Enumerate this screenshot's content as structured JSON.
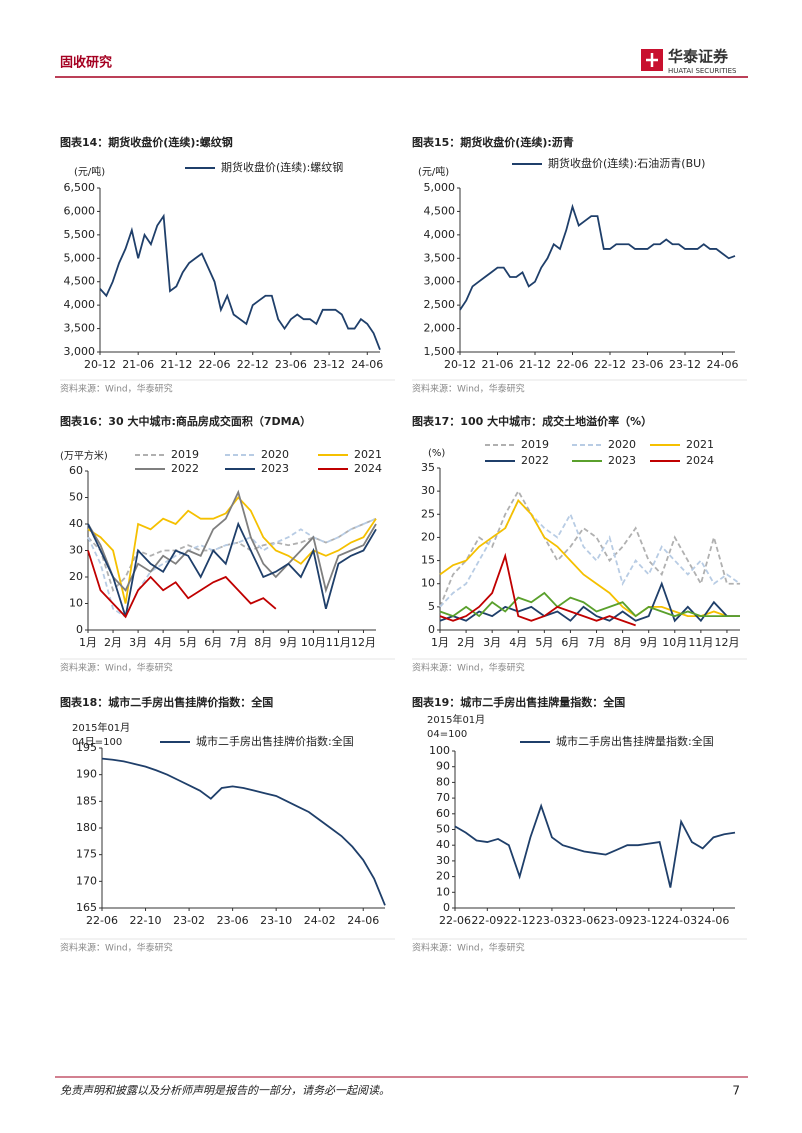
{
  "header": {
    "section": "固收研究",
    "logo_cn": "华泰证券",
    "logo_en": "HUATAI SECURITIES"
  },
  "footer": {
    "disclaimer": "免责声明和披露以及分析师声明是报告的一部分，请务必一起阅读。",
    "page": 7
  },
  "chart_data": [
    {
      "type": "line",
      "title": "图表14：期货收盘价(连续):螺纹钢",
      "y_label": "(元/吨)",
      "source": "资料来源：Wind，华泰研究",
      "categories": [
        "20-12",
        null,
        null,
        null,
        null,
        null,
        "21-06",
        null,
        null,
        null,
        null,
        null,
        "21-12",
        null,
        null,
        null,
        null,
        null,
        "22-06",
        null,
        null,
        null,
        null,
        null,
        "22-12",
        null,
        null,
        null,
        null,
        null,
        "23-06",
        null,
        null,
        null,
        null,
        null,
        "23-12",
        null,
        null,
        null,
        null,
        null,
        "24-06",
        null,
        null
      ],
      "series": [
        {
          "name": "期货收盘价(连续):螺纹钢",
          "color": "#1f3f6a",
          "values": [
            4350,
            4200,
            4500,
            4900,
            5200,
            5600,
            5000,
            5500,
            5300,
            5700,
            5900,
            4300,
            4400,
            4700,
            4900,
            5000,
            5100,
            4800,
            4500,
            3900,
            4200,
            3800,
            3700,
            3600,
            4000,
            4100,
            4200,
            4200,
            3700,
            3500,
            3700,
            3800,
            3700,
            3700,
            3600,
            3900,
            3900,
            3900,
            3800,
            3500,
            3500,
            3700,
            3600,
            3400,
            3050
          ]
        }
      ],
      "ylim": [
        3000,
        6500
      ],
      "yticks": [
        {
          "value": 3000,
          "label": "3,000"
        },
        {
          "value": 3500,
          "label": "3,500"
        },
        {
          "value": 4000,
          "label": "4,000"
        },
        {
          "value": 4500,
          "label": "4,500"
        },
        {
          "value": 5000,
          "label": "5,000"
        },
        {
          "value": 5500,
          "label": "5,500"
        },
        {
          "value": 6000,
          "label": "6,000"
        },
        {
          "value": 6500,
          "label": "6,500"
        }
      ]
    },
    {
      "type": "line",
      "title": "图表15：期货收盘价(连续):沥青",
      "y_label": "(元/吨)",
      "source": "资料来源：Wind，华泰研究",
      "categories": [
        "20-12",
        null,
        null,
        null,
        null,
        null,
        "21-06",
        null,
        null,
        null,
        null,
        null,
        "21-12",
        null,
        null,
        null,
        null,
        null,
        "22-06",
        null,
        null,
        null,
        null,
        null,
        "22-12",
        null,
        null,
        null,
        null,
        null,
        "23-06",
        null,
        null,
        null,
        null,
        null,
        "23-12",
        null,
        null,
        null,
        null,
        null,
        "24-06",
        null,
        null
      ],
      "series": [
        {
          "name": "期货收盘价(连续):石油沥青(BU)",
          "color": "#1f3f6a",
          "values": [
            2400,
            2600,
            2900,
            3000,
            3100,
            3200,
            3300,
            3300,
            3100,
            3100,
            3200,
            2900,
            3000,
            3300,
            3500,
            3800,
            3700,
            4100,
            4600,
            4200,
            4300,
            4400,
            4400,
            3700,
            3700,
            3800,
            3800,
            3800,
            3700,
            3700,
            3700,
            3800,
            3800,
            3900,
            3800,
            3800,
            3700,
            3700,
            3700,
            3800,
            3700,
            3700,
            3600,
            3500,
            3550
          ]
        }
      ],
      "ylim": [
        1500,
        5000
      ],
      "yticks": [
        {
          "value": 1500,
          "label": "1,500"
        },
        {
          "value": 2000,
          "label": "2,000"
        },
        {
          "value": 2500,
          "label": "2,500"
        },
        {
          "value": 3000,
          "label": "3,000"
        },
        {
          "value": 3500,
          "label": "3,500"
        },
        {
          "value": 4000,
          "label": "4,000"
        },
        {
          "value": 4500,
          "label": "4,500"
        },
        {
          "value": 5000,
          "label": "5,000"
        }
      ]
    },
    {
      "type": "line",
      "title": "图表16：30 大中城市:商品房成交面积（7DMA）",
      "y_label": "(万平方米)",
      "source": "资料来源：Wind，华泰研究",
      "categories": [
        "1月",
        null,
        "2月",
        null,
        "3月",
        null,
        "4月",
        null,
        "5月",
        null,
        "6月",
        null,
        "7月",
        null,
        "8月",
        null,
        "9月",
        null,
        "10月",
        null,
        "11月",
        null,
        "12月",
        null
      ],
      "series": [
        {
          "name": "2019",
          "color": "#b0b0b0",
          "dashed": true,
          "values": [
            35,
            30,
            15,
            20,
            30,
            28,
            30,
            30,
            32,
            30,
            30,
            32,
            33,
            30,
            32,
            33,
            32,
            33,
            35,
            33,
            35,
            38,
            40,
            42
          ]
        },
        {
          "name": "2020",
          "color": "#b8cce4",
          "dashed": true,
          "values": [
            35,
            25,
            8,
            5,
            15,
            22,
            25,
            28,
            30,
            32,
            30,
            32,
            33,
            35,
            30,
            33,
            35,
            38,
            35,
            33,
            35,
            38,
            40,
            42
          ]
        },
        {
          "name": "2021",
          "color": "#f5c000",
          "values": [
            38,
            35,
            30,
            10,
            40,
            38,
            42,
            40,
            45,
            42,
            42,
            44,
            50,
            45,
            35,
            30,
            28,
            25,
            30,
            28,
            30,
            33,
            35,
            42
          ]
        },
        {
          "name": "2022",
          "color": "#7f7f7f",
          "values": [
            40,
            32,
            20,
            15,
            25,
            22,
            28,
            25,
            30,
            28,
            38,
            42,
            52,
            35,
            25,
            20,
            25,
            30,
            35,
            15,
            28,
            30,
            32,
            40
          ]
        },
        {
          "name": "2023",
          "color": "#1f3f6a",
          "values": [
            40,
            30,
            20,
            5,
            30,
            25,
            22,
            30,
            28,
            20,
            30,
            25,
            40,
            30,
            20,
            22,
            25,
            20,
            30,
            8,
            25,
            28,
            30,
            38
          ]
        },
        {
          "name": "2024",
          "color": "#c00000",
          "values": [
            30,
            15,
            10,
            5,
            15,
            20,
            15,
            18,
            12,
            15,
            18,
            20,
            15,
            10,
            12,
            8,
            null,
            null,
            null,
            null,
            null,
            null,
            null,
            null
          ]
        }
      ],
      "ylim": [
        0,
        60
      ],
      "yticks": [
        0,
        10,
        20,
        30,
        40,
        50,
        60
      ]
    },
    {
      "type": "line",
      "title": "图表17：100 大中城市：成交土地溢价率（%）",
      "y_label": "(%)",
      "source": "资料来源：Wind，华泰研究",
      "categories": [
        "1月",
        null,
        "2月",
        null,
        "3月",
        null,
        "4月",
        null,
        "5月",
        null,
        "6月",
        null,
        "7月",
        null,
        "8月",
        null,
        "9月",
        null,
        "10月",
        null,
        "11月",
        null,
        "12月",
        null
      ],
      "series": [
        {
          "name": "2019",
          "color": "#b0b0b0",
          "dashed": true,
          "values": [
            5,
            12,
            15,
            20,
            18,
            25,
            30,
            25,
            20,
            15,
            18,
            22,
            20,
            15,
            18,
            22,
            15,
            12,
            20,
            15,
            10,
            20,
            10,
            10
          ]
        },
        {
          "name": "2020",
          "color": "#b8cce4",
          "dashed": true,
          "values": [
            5,
            8,
            10,
            15,
            20,
            22,
            28,
            25,
            22,
            20,
            25,
            18,
            15,
            20,
            10,
            15,
            12,
            18,
            15,
            12,
            15,
            10,
            12,
            10
          ]
        },
        {
          "name": "2021",
          "color": "#f5c000",
          "values": [
            12,
            14,
            15,
            18,
            20,
            22,
            28,
            25,
            20,
            18,
            15,
            12,
            10,
            8,
            5,
            3,
            5,
            5,
            4,
            3,
            3,
            4,
            3,
            3
          ]
        },
        {
          "name": "2022",
          "color": "#1f3f6a",
          "values": [
            2,
            3,
            2,
            4,
            3,
            5,
            4,
            5,
            3,
            4,
            2,
            5,
            3,
            2,
            4,
            2,
            3,
            10,
            2,
            5,
            2,
            6,
            3,
            3
          ]
        },
        {
          "name": "2023",
          "color": "#5aa02c",
          "values": [
            4,
            3,
            5,
            3,
            6,
            4,
            7,
            6,
            8,
            5,
            7,
            6,
            4,
            5,
            6,
            3,
            5,
            4,
            3,
            4,
            3,
            3,
            3,
            3
          ]
        },
        {
          "name": "2024",
          "color": "#c00000",
          "values": [
            3,
            2,
            3,
            5,
            8,
            16,
            3,
            2,
            3,
            5,
            4,
            3,
            2,
            3,
            2,
            1,
            null,
            null,
            null,
            null,
            null,
            null,
            null,
            null
          ]
        }
      ],
      "ylim": [
        0,
        35
      ],
      "yticks": [
        0,
        5,
        10,
        15,
        20,
        25,
        30,
        35
      ]
    },
    {
      "type": "line",
      "title": "图表18：城市二手房出售挂牌价指数：全国",
      "y_label": [
        "2015年01月",
        "04日=100"
      ],
      "source": "资料来源：Wind，华泰研究",
      "categories": [
        "22-06",
        null,
        null,
        null,
        "22-10",
        null,
        null,
        null,
        "23-02",
        null,
        null,
        null,
        "23-06",
        null,
        null,
        null,
        "23-10",
        null,
        null,
        null,
        "24-02",
        null,
        null,
        null,
        "24-06",
        null,
        null
      ],
      "series": [
        {
          "name": "城市二手房出售挂牌价指数:全国",
          "color": "#1f3f6a",
          "values": [
            193,
            192.8,
            192.5,
            192,
            191.5,
            190.8,
            190,
            189,
            188,
            187,
            185.5,
            187.5,
            187.8,
            187.5,
            187,
            186.5,
            186,
            185,
            184,
            183,
            181.5,
            180,
            178.5,
            176.5,
            174,
            170.5,
            165.5
          ]
        }
      ],
      "ylim": [
        165,
        195
      ],
      "yticks": [
        165,
        170,
        175,
        180,
        185,
        190,
        195
      ]
    },
    {
      "type": "line",
      "title": "图表19：城市二手房出售挂牌量指数：全国",
      "y_label": [
        "2015年01月",
        "04=100"
      ],
      "source": "资料来源：Wind，华泰研究",
      "categories": [
        "22-06",
        null,
        null,
        "22-09",
        null,
        null,
        "22-12",
        null,
        null,
        "23-03",
        null,
        null,
        "23-06",
        null,
        null,
        "23-09",
        null,
        null,
        "23-12",
        null,
        null,
        "24-03",
        null,
        null,
        "24-06",
        null,
        null
      ],
      "series": [
        {
          "name": "城市二手房出售挂牌量指数:全国",
          "color": "#1f3f6a",
          "values": [
            52,
            48,
            43,
            42,
            44,
            40,
            20,
            45,
            65,
            45,
            40,
            38,
            36,
            35,
            34,
            37,
            40,
            40,
            41,
            42,
            13,
            55,
            42,
            38,
            45,
            47,
            48
          ]
        }
      ],
      "ylim": [
        0,
        100
      ],
      "yticks": [
        0,
        10,
        20,
        30,
        40,
        50,
        60,
        70,
        80,
        90,
        100
      ]
    }
  ]
}
